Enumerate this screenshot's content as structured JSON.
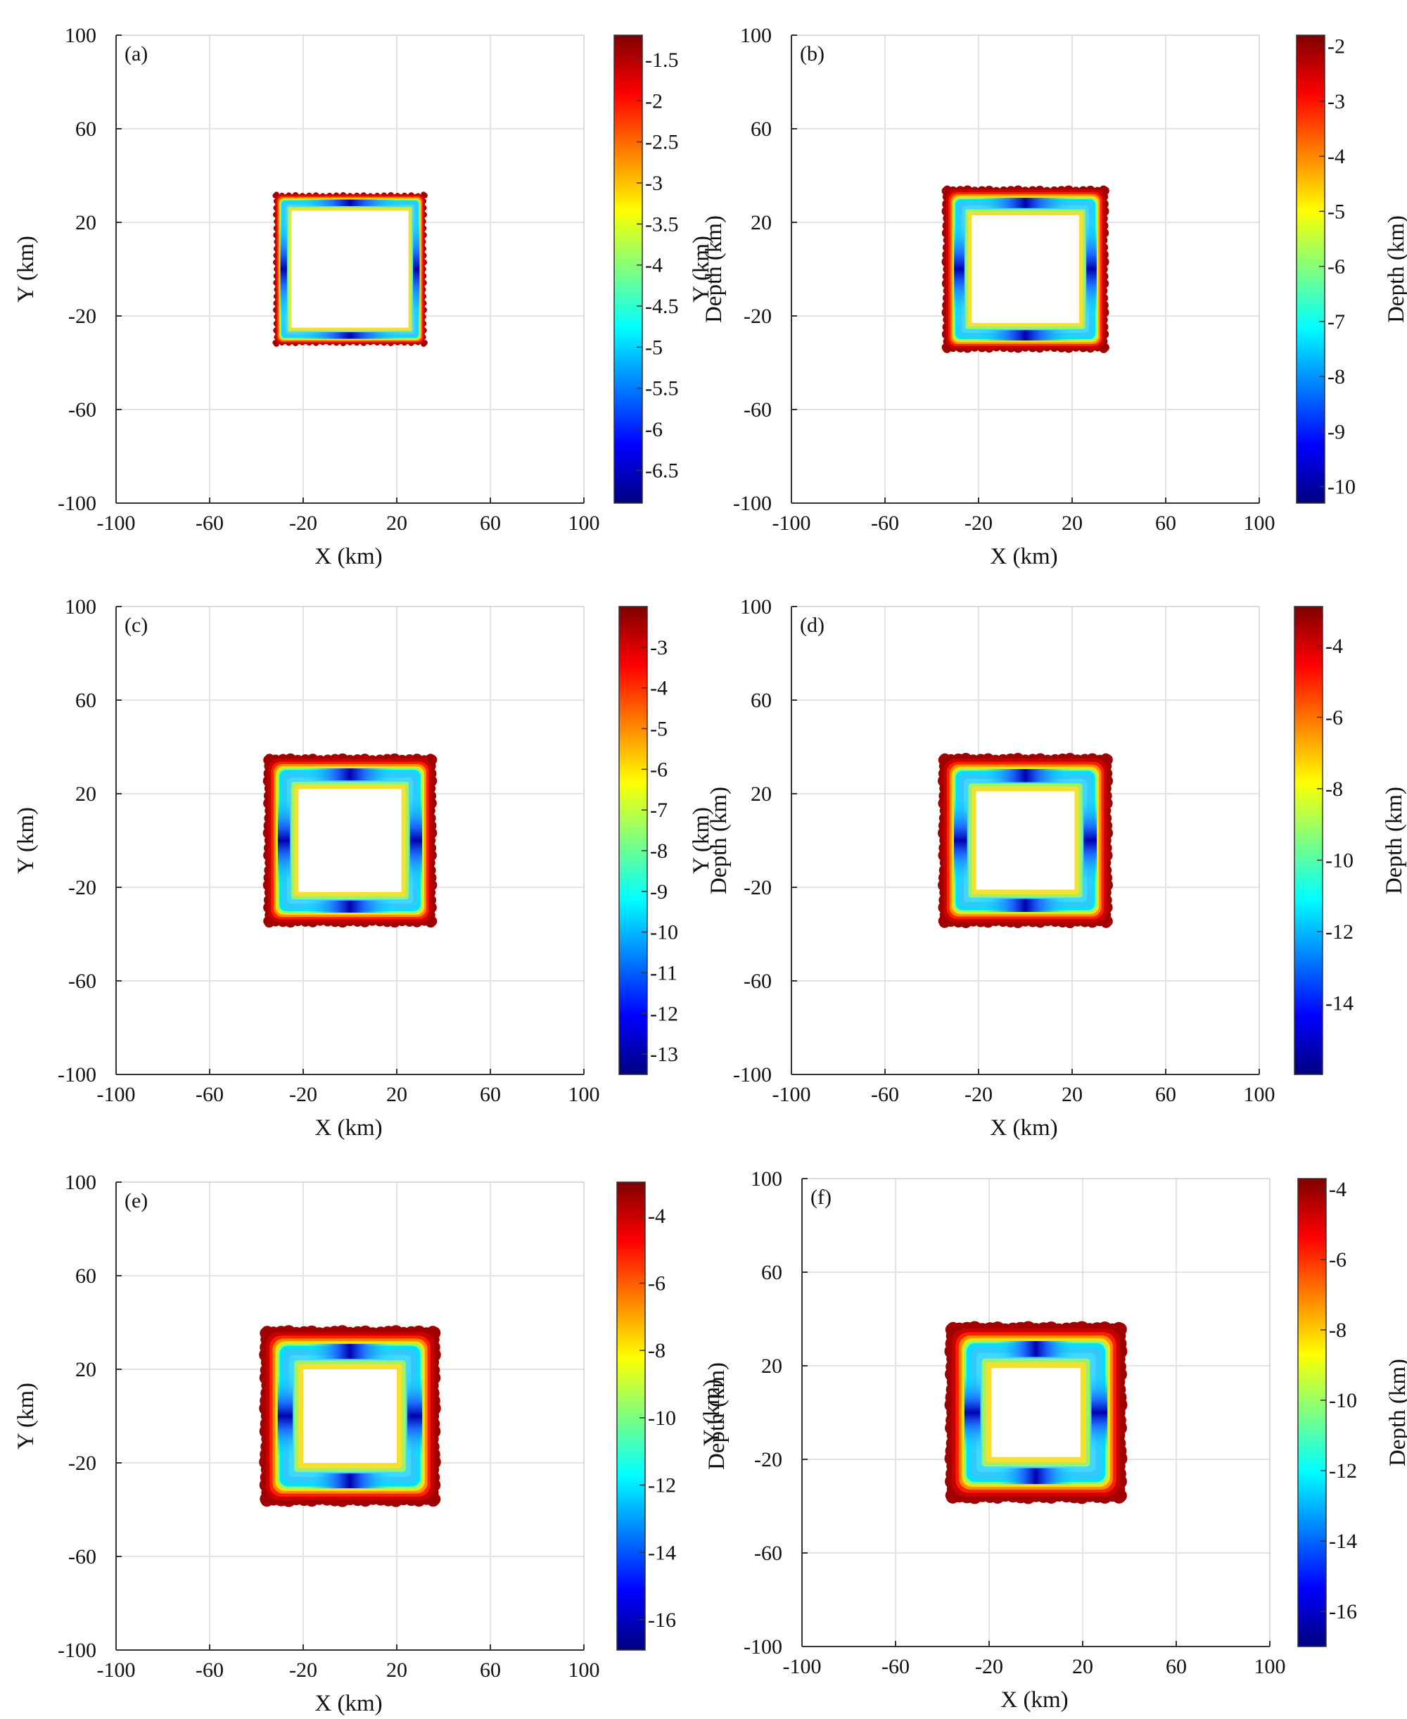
{
  "chart_data": [
    {
      "type": "heatmap",
      "panel_label": "(a)",
      "xlabel": "X (km)",
      "ylabel": "Y (km)",
      "colorbar_label": "Depth (km)",
      "xlim": [
        -100,
        100
      ],
      "ylim": [
        -100,
        100
      ],
      "x_ticks": [
        "-100",
        "-60",
        "-20",
        "20",
        "60",
        "100"
      ],
      "y_ticks": [
        "100",
        "60",
        "20",
        "-20",
        "-60",
        "-100"
      ],
      "grid": true,
      "colorbar_range": [
        -6.9,
        -1.2
      ],
      "colorbar_ticks": [
        "-1.5",
        "-2",
        "-2.5",
        "-3",
        "-3.5",
        "-4",
        "-4.5",
        "-5",
        "-5.5",
        "-6",
        "-6.5"
      ],
      "feature": {
        "shape": "square-ring",
        "outer_half_width_km": 32,
        "inner_half_width_km": 25,
        "min_depth_km": -6.9
      }
    },
    {
      "type": "heatmap",
      "panel_label": "(b)",
      "xlabel": "X (km)",
      "ylabel": "Y (km)",
      "colorbar_label": "Depth (km)",
      "xlim": [
        -100,
        100
      ],
      "ylim": [
        -100,
        100
      ],
      "x_ticks": [
        "-100",
        "-60",
        "-20",
        "20",
        "60",
        "100"
      ],
      "y_ticks": [
        "100",
        "60",
        "20",
        "-20",
        "-60",
        "-100"
      ],
      "grid": true,
      "colorbar_range": [
        -10.3,
        -1.8
      ],
      "colorbar_ticks": [
        "-2",
        "-3",
        "-4",
        "-5",
        "-6",
        "-7",
        "-8",
        "-9",
        "-10"
      ],
      "feature": {
        "shape": "square-ring",
        "outer_half_width_km": 34,
        "inner_half_width_km": 23,
        "min_depth_km": -10.3
      }
    },
    {
      "type": "heatmap",
      "panel_label": "(c)",
      "xlabel": "X (km)",
      "ylabel": "Y (km)",
      "colorbar_label": "Depth (km)",
      "xlim": [
        -100,
        100
      ],
      "ylim": [
        -100,
        100
      ],
      "x_ticks": [
        "-100",
        "-60",
        "-20",
        "20",
        "60",
        "100"
      ],
      "y_ticks": [
        "100",
        "60",
        "20",
        "-20",
        "-60",
        "-100"
      ],
      "grid": true,
      "colorbar_range": [
        -13.5,
        -2.0
      ],
      "colorbar_ticks": [
        "-3",
        "-4",
        "-5",
        "-6",
        "-7",
        "-8",
        "-9",
        "-10",
        "-11",
        "-12",
        "-13"
      ],
      "feature": {
        "shape": "square-ring",
        "outer_half_width_km": 35,
        "inner_half_width_km": 22,
        "min_depth_km": -13.5
      }
    },
    {
      "type": "heatmap",
      "panel_label": "(d)",
      "xlabel": "X (km)",
      "ylabel": "Y (km)",
      "colorbar_label": "Depth (km)",
      "xlim": [
        -100,
        100
      ],
      "ylim": [
        -100,
        100
      ],
      "x_ticks": [
        "-100",
        "-60",
        "-20",
        "20",
        "60",
        "100"
      ],
      "y_ticks": [
        "100",
        "60",
        "20",
        "-20",
        "-60",
        "-100"
      ],
      "grid": true,
      "colorbar_range": [
        -16.0,
        -2.9
      ],
      "colorbar_ticks": [
        "-4",
        "-6",
        "-8",
        "-10",
        "-12",
        "-14"
      ],
      "feature": {
        "shape": "square-ring",
        "outer_half_width_km": 35,
        "inner_half_width_km": 21,
        "min_depth_km": -16.0
      }
    },
    {
      "type": "heatmap",
      "panel_label": "(e)",
      "xlabel": "X (km)",
      "ylabel": "Y (km)",
      "colorbar_label": "Depth (km)",
      "xlim": [
        -100,
        100
      ],
      "ylim": [
        -100,
        100
      ],
      "x_ticks": [
        "-100",
        "-60",
        "-20",
        "20",
        "60",
        "100"
      ],
      "y_ticks": [
        "100",
        "60",
        "20",
        "-20",
        "-60",
        "-100"
      ],
      "grid": true,
      "colorbar_range": [
        -16.9,
        -3.0
      ],
      "colorbar_ticks": [
        "-4",
        "-6",
        "-8",
        "-10",
        "-12",
        "-14",
        "-16"
      ],
      "feature": {
        "shape": "square-ring",
        "outer_half_width_km": 36,
        "inner_half_width_km": 20,
        "min_depth_km": -16.9
      }
    },
    {
      "type": "heatmap",
      "panel_label": "(f)",
      "xlabel": "X (km)",
      "ylabel": "Y (km)",
      "colorbar_label": "Depth (km)",
      "xlim": [
        -100,
        100
      ],
      "ylim": [
        -100,
        100
      ],
      "x_ticks": [
        "-100",
        "-60",
        "-20",
        "20",
        "60",
        "100"
      ],
      "y_ticks": [
        "100",
        "60",
        "20",
        "-20",
        "-60",
        "-100"
      ],
      "grid": true,
      "colorbar_range": [
        -17.0,
        -3.7
      ],
      "colorbar_ticks": [
        "-4",
        "-6",
        "-8",
        "-10",
        "-12",
        "-14",
        "-16"
      ],
      "feature": {
        "shape": "square-ring",
        "outer_half_width_km": 36,
        "inner_half_width_km": 19,
        "min_depth_km": -17.0
      }
    }
  ]
}
